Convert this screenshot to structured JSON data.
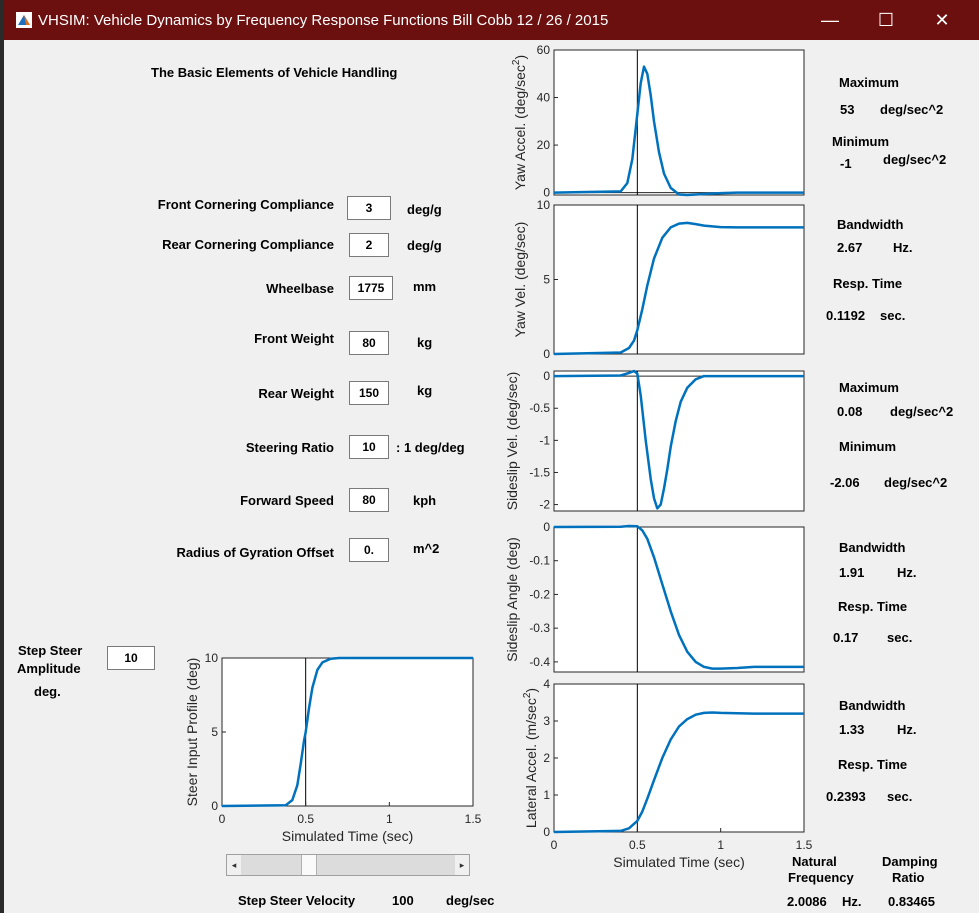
{
  "window": {
    "title": "VHSIM: Vehicle Dynamics by Frequency Response Functions     Bill Cobb  12 / 26 / 2015",
    "minimize_glyph": "—",
    "maximize_glyph": "☐",
    "close_glyph": "✕",
    "icon": "matlab-icon"
  },
  "heading": "The Basic Elements of Vehicle Handling",
  "params": [
    {
      "label": "Front Cornering Compliance",
      "value": "3",
      "unit": "deg/g"
    },
    {
      "label": "Rear Cornering Compliance",
      "value": "2",
      "unit": "deg/g"
    },
    {
      "label": "Wheelbase",
      "value": "1775",
      "unit": "mm"
    },
    {
      "label": "Front Weight",
      "value": "80",
      "unit": "kg"
    },
    {
      "label": "Rear Weight",
      "value": "150",
      "unit": "kg"
    },
    {
      "label": "Steering Ratio",
      "value": "10",
      "unit": ": 1 deg/deg"
    },
    {
      "label": "Forward Speed",
      "value": "80",
      "unit": "kph"
    },
    {
      "label": "Radius of Gyration Offset",
      "value": "0.",
      "unit": "m^2"
    }
  ],
  "step": {
    "label_line1": "Step Steer",
    "label_line2": "Amplitude",
    "label_line3": "deg.",
    "value": "10",
    "velocity_label": "Step Steer Velocity",
    "velocity_value": "100",
    "velocity_unit": "deg/sec",
    "slider_position": 0.3
  },
  "stats": {
    "yaw_accel": {
      "max_label": "Maximum",
      "max_value": "53",
      "max_unit": "deg/sec^2",
      "min_label": "Minimum",
      "min_value": "-1",
      "min_unit": "deg/sec^2"
    },
    "yaw_vel": {
      "bw_label": "Bandwidth",
      "bw_value": "2.67",
      "bw_unit": "Hz.",
      "rt_label": "Resp. Time",
      "rt_value": "0.1192",
      "rt_unit": "sec."
    },
    "sideslip_vel": {
      "max_label": "Maximum",
      "max_value": "0.08",
      "max_unit": "deg/sec^2",
      "min_label": "Minimum",
      "min_value": "-2.06",
      "min_unit": "deg/sec^2"
    },
    "sideslip_angle": {
      "bw_label": "Bandwidth",
      "bw_value": "1.91",
      "bw_unit": "Hz.",
      "rt_label": "Resp. Time",
      "rt_value": "0.17",
      "rt_unit": "sec."
    },
    "lateral_accel": {
      "bw_label": "Bandwidth",
      "bw_value": "1.33",
      "bw_unit": "Hz.",
      "rt_label": "Resp. Time",
      "rt_value": "0.2393",
      "rt_unit": "sec."
    },
    "natural_freq": {
      "label_line1": "Natural",
      "label_line2": "Frequency",
      "value": "2.0086",
      "unit": "Hz."
    },
    "damping": {
      "label_line1": "Damping",
      "label_line2": "Ratio",
      "value": "0.83465"
    }
  },
  "colors": {
    "curve": "#0072BD",
    "titlebar": "#6b0f0f",
    "background": "#f0f0f0"
  },
  "chart_data": [
    {
      "type": "line",
      "xlabel": "",
      "ylabel": "Yaw Accel. (deg/sec^2)",
      "ylabel_main": "Yaw Accel. (deg/sec",
      "ylabel_sup": "2",
      "ylabel_close": ")",
      "xlim": [
        0,
        1.5
      ],
      "ylim": [
        -1,
        60
      ],
      "yticks": [
        0,
        20,
        40,
        60
      ],
      "xticks": [],
      "marker_x": 0.5,
      "series": [
        {
          "x": [
            0,
            0.4,
            0.44,
            0.47,
            0.5,
            0.52,
            0.54,
            0.56,
            0.58,
            0.6,
            0.63,
            0.66,
            0.7,
            0.75,
            0.8,
            0.9,
            1.0,
            1.1,
            1.2,
            1.3,
            1.4,
            1.5
          ],
          "y": [
            0,
            0.5,
            4,
            14,
            33,
            46,
            53,
            50,
            41,
            30,
            17,
            8,
            2,
            -0.8,
            -1,
            -0.6,
            -0.2,
            0,
            0,
            0,
            0,
            0
          ]
        }
      ]
    },
    {
      "type": "line",
      "xlabel": "",
      "ylabel": "Yaw Vel. (deg/sec)",
      "xlim": [
        0,
        1.5
      ],
      "ylim": [
        0,
        10
      ],
      "yticks": [
        0,
        5,
        10
      ],
      "xticks": [],
      "marker_x": 0.5,
      "series": [
        {
          "x": [
            0,
            0.4,
            0.45,
            0.48,
            0.5,
            0.53,
            0.56,
            0.6,
            0.65,
            0.7,
            0.75,
            0.8,
            0.85,
            0.9,
            1.0,
            1.1,
            1.2,
            1.3,
            1.4,
            1.5
          ],
          "y": [
            0,
            0.1,
            0.4,
            0.9,
            1.6,
            3.0,
            4.6,
            6.4,
            7.8,
            8.5,
            8.75,
            8.8,
            8.72,
            8.62,
            8.52,
            8.5,
            8.5,
            8.5,
            8.5,
            8.5
          ]
        }
      ]
    },
    {
      "type": "line",
      "xlabel": "",
      "ylabel": "Sideslip Vel. (deg/sec)",
      "xlim": [
        0,
        1.5
      ],
      "ylim": [
        -2.1,
        0.08
      ],
      "yticks": [
        0,
        -0.5,
        -1,
        -1.5,
        -2
      ],
      "xticks": [],
      "marker_x": 0.5,
      "series": [
        {
          "x": [
            0,
            0.4,
            0.45,
            0.48,
            0.5,
            0.52,
            0.55,
            0.58,
            0.6,
            0.62,
            0.64,
            0.66,
            0.68,
            0.7,
            0.73,
            0.76,
            0.8,
            0.85,
            0.9,
            1.0,
            1.1,
            1.2,
            1.3,
            1.4,
            1.5
          ],
          "y": [
            0,
            0.01,
            0.05,
            0.08,
            0.04,
            -0.3,
            -1.0,
            -1.6,
            -1.9,
            -2.06,
            -2.0,
            -1.75,
            -1.45,
            -1.1,
            -0.7,
            -0.4,
            -0.18,
            -0.05,
            0,
            0,
            0,
            0,
            0,
            0,
            0
          ]
        }
      ]
    },
    {
      "type": "line",
      "xlabel": "",
      "ylabel": "Sideslip Angle (deg)",
      "xlim": [
        0,
        1.5
      ],
      "ylim": [
        -0.43,
        0.0
      ],
      "yticks": [
        0,
        -0.1,
        -0.2,
        -0.3,
        -0.4
      ],
      "xticks": [],
      "marker_x": 0.5,
      "series": [
        {
          "x": [
            0,
            0.4,
            0.45,
            0.5,
            0.53,
            0.56,
            0.6,
            0.65,
            0.7,
            0.75,
            0.8,
            0.85,
            0.9,
            0.95,
            1.0,
            1.1,
            1.2,
            1.3,
            1.4,
            1.5
          ],
          "y": [
            0,
            0.001,
            0.003,
            0.002,
            -0.01,
            -0.035,
            -0.09,
            -0.17,
            -0.25,
            -0.32,
            -0.37,
            -0.4,
            -0.415,
            -0.42,
            -0.42,
            -0.418,
            -0.415,
            -0.415,
            -0.415,
            -0.415
          ]
        }
      ]
    },
    {
      "type": "line",
      "xlabel": "Simulated Time (sec)",
      "ylabel": "Lateral Accel. (m/sec^2)",
      "ylabel_main": "Lateral Accel. (m/sec",
      "ylabel_sup": "2",
      "ylabel_close": ")",
      "xlim": [
        0,
        1.5
      ],
      "ylim": [
        0,
        4
      ],
      "yticks": [
        0,
        1,
        2,
        3,
        4
      ],
      "xticks": [
        0,
        0.5,
        1,
        1.5
      ],
      "xticklabels": [
        "0",
        "0.5",
        "1",
        "1.5"
      ],
      "marker_x": 0.5,
      "series": [
        {
          "x": [
            0,
            0.4,
            0.45,
            0.5,
            0.53,
            0.56,
            0.6,
            0.65,
            0.7,
            0.75,
            0.8,
            0.85,
            0.9,
            0.95,
            1.0,
            1.1,
            1.2,
            1.3,
            1.4,
            1.5
          ],
          "y": [
            0,
            0.03,
            0.1,
            0.3,
            0.55,
            0.9,
            1.4,
            2.0,
            2.5,
            2.85,
            3.05,
            3.17,
            3.22,
            3.23,
            3.22,
            3.21,
            3.2,
            3.2,
            3.2,
            3.2
          ]
        }
      ]
    },
    {
      "type": "line",
      "xlabel": "Simulated Time (sec)",
      "ylabel": "Steer Input Profile (deg)",
      "xlim": [
        0,
        1.5
      ],
      "ylim": [
        0,
        10
      ],
      "yticks": [
        0,
        5,
        10
      ],
      "xticks": [
        0,
        0.5,
        1,
        1.5
      ],
      "xticklabels": [
        "0",
        "0.5",
        "1",
        "1.5"
      ],
      "marker_x": 0.5,
      "series": [
        {
          "x": [
            0,
            0.38,
            0.42,
            0.45,
            0.47,
            0.49,
            0.5,
            0.52,
            0.54,
            0.57,
            0.6,
            0.65,
            0.7,
            0.8,
            1.0,
            1.5
          ],
          "y": [
            0,
            0.05,
            0.4,
            1.4,
            2.8,
            4.4,
            5.0,
            6.6,
            8.0,
            9.2,
            9.7,
            9.95,
            10,
            10,
            10,
            10
          ]
        }
      ]
    }
  ]
}
